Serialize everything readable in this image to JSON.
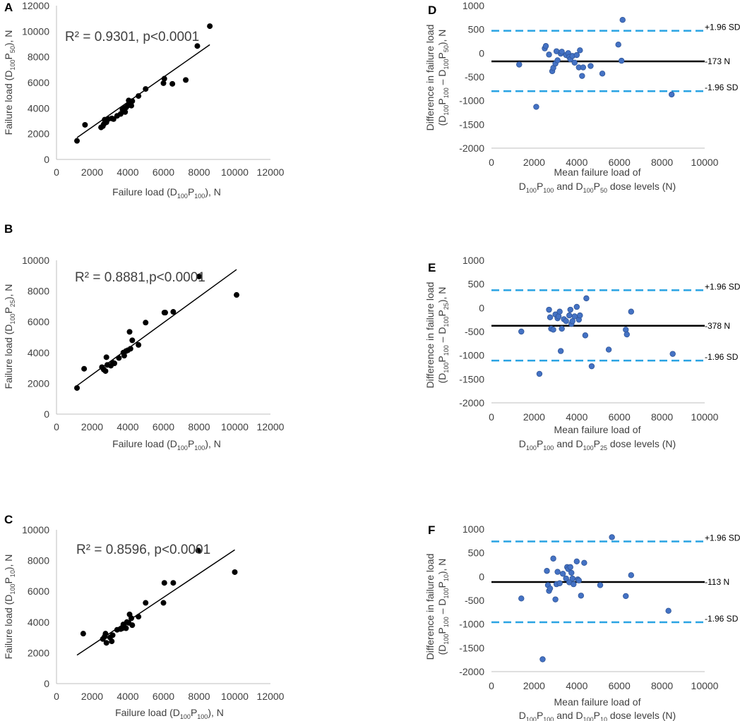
{
  "colors": {
    "scatter_point": "#000000",
    "ba_point": "#4472c4",
    "ba_point_edge": "#2f5597",
    "mean_line": "#000000",
    "limit_line": "#29a3e3",
    "axis": "#bfbfbf",
    "text": "#404040"
  },
  "chart_data": [
    {
      "panel": "A",
      "type": "scatter",
      "title": "",
      "xlabel": {
        "pre": "Failure load (D",
        "s1": "100",
        "mid": "P",
        "s2": "100",
        "post": "), N"
      },
      "ylabel": {
        "pre": "Failure load (D",
        "s1": "100",
        "mid": "P",
        "s2": "50",
        "post": "), N"
      },
      "xlim": [
        0,
        12000
      ],
      "ylim": [
        0,
        12000
      ],
      "xticks": [
        "0",
        "2000",
        "4000",
        "6000",
        "8000",
        "10000",
        "12000"
      ],
      "yticks": [
        "0",
        "2000",
        "4000",
        "6000",
        "8000",
        "10000",
        "12000"
      ],
      "annotation": "R² = 0.9301, p<0.0001",
      "trendline": [
        [
          1150,
          1700
        ],
        [
          8600,
          8950
        ]
      ],
      "points": [
        [
          1150,
          1450
        ],
        [
          1600,
          2700
        ],
        [
          2500,
          2500
        ],
        [
          2600,
          2600
        ],
        [
          2650,
          2750
        ],
        [
          2700,
          3100
        ],
        [
          2800,
          2900
        ],
        [
          2900,
          3150
        ],
        [
          3100,
          3200
        ],
        [
          3200,
          3150
        ],
        [
          3400,
          3400
        ],
        [
          3600,
          3550
        ],
        [
          3700,
          3900
        ],
        [
          3800,
          4000
        ],
        [
          3850,
          3700
        ],
        [
          3900,
          4050
        ],
        [
          4000,
          4200
        ],
        [
          4050,
          4600
        ],
        [
          4100,
          4500
        ],
        [
          4200,
          4200
        ],
        [
          4250,
          4550
        ],
        [
          4600,
          4950
        ],
        [
          5000,
          5500
        ],
        [
          6000,
          5950
        ],
        [
          6050,
          6300
        ],
        [
          6500,
          5900
        ],
        [
          7250,
          6200
        ],
        [
          7900,
          8850
        ],
        [
          8600,
          10400
        ]
      ]
    },
    {
      "panel": "B",
      "type": "scatter",
      "title": "",
      "xlabel": {
        "pre": "Failure load (D",
        "s1": "100",
        "mid": "P",
        "s2": "100",
        "post": "), N"
      },
      "ylabel": {
        "pre": "Failure load (D",
        "s1": "100",
        "mid": "P",
        "s2": "25",
        "post": "), N"
      },
      "xlim": [
        0,
        12000
      ],
      "ylim": [
        0,
        10000
      ],
      "xticks": [
        "0",
        "2000",
        "4000",
        "6000",
        "8000",
        "10000",
        "12000"
      ],
      "yticks": [
        "0",
        "2000",
        "4000",
        "6000",
        "8000",
        "10000"
      ],
      "annotation": "R² = 0.8881,p<0.0001",
      "trendline": [
        [
          1150,
          1850
        ],
        [
          10100,
          9400
        ]
      ],
      "points": [
        [
          1150,
          1700
        ],
        [
          1550,
          2950
        ],
        [
          2550,
          3050
        ],
        [
          2650,
          2900
        ],
        [
          2750,
          2800
        ],
        [
          2800,
          3700
        ],
        [
          2850,
          3200
        ],
        [
          3050,
          3150
        ],
        [
          3150,
          3350
        ],
        [
          3250,
          3300
        ],
        [
          3500,
          3650
        ],
        [
          3750,
          4000
        ],
        [
          3800,
          3800
        ],
        [
          3900,
          4100
        ],
        [
          4000,
          4150
        ],
        [
          4100,
          5350
        ],
        [
          4150,
          4250
        ],
        [
          4250,
          4800
        ],
        [
          4600,
          4500
        ],
        [
          5000,
          5950
        ],
        [
          6050,
          6600
        ],
        [
          6100,
          6600
        ],
        [
          6550,
          6650
        ],
        [
          8000,
          8950
        ],
        [
          10100,
          7750
        ]
      ]
    },
    {
      "panel": "C",
      "type": "scatter",
      "title": "",
      "xlabel": {
        "pre": "Failure load (D",
        "s1": "100",
        "mid": "P",
        "s2": "100",
        "post": "), N"
      },
      "ylabel": {
        "pre": "Failure load (D",
        "s1": "100",
        "mid": "P",
        "s2": "10",
        "post": "), N"
      },
      "xlim": [
        0,
        12000
      ],
      "ylim": [
        0,
        10000
      ],
      "xticks": [
        "0",
        "2000",
        "4000",
        "6000",
        "8000",
        "10000",
        "12000"
      ],
      "yticks": [
        "0",
        "2000",
        "4000",
        "6000",
        "8000",
        "10000"
      ],
      "annotation": "R² = 0.8596, p<0.0001",
      "trendline": [
        [
          1150,
          1850
        ],
        [
          10000,
          8700
        ]
      ],
      "points": [
        [
          1500,
          3250
        ],
        [
          2600,
          2900
        ],
        [
          2700,
          3050
        ],
        [
          2750,
          3250
        ],
        [
          2800,
          2650
        ],
        [
          3000,
          3000
        ],
        [
          3100,
          2750
        ],
        [
          3150,
          3150
        ],
        [
          3400,
          3500
        ],
        [
          3600,
          3550
        ],
        [
          3700,
          3600
        ],
        [
          3750,
          3850
        ],
        [
          3800,
          3700
        ],
        [
          3900,
          3600
        ],
        [
          3950,
          4000
        ],
        [
          4050,
          3950
        ],
        [
          4100,
          4500
        ],
        [
          4200,
          4250
        ],
        [
          4250,
          3800
        ],
        [
          4600,
          4350
        ],
        [
          5000,
          5250
        ],
        [
          6000,
          5250
        ],
        [
          6050,
          6550
        ],
        [
          6550,
          6550
        ],
        [
          7950,
          8650
        ],
        [
          10000,
          7250
        ]
      ]
    },
    {
      "panel": "D",
      "type": "scatter",
      "subtype": "bland-altman",
      "title": "",
      "xlabel": {
        "line1": "Mean failure load of",
        "a_pre": "D",
        "a_s1": "100",
        "a_mid": "P",
        "a_s2": "100",
        "join": " and D",
        "b_s1": "100",
        "b_mid": "P",
        "b_s2": "50",
        "post": " dose levels (N)"
      },
      "ylabel": {
        "line1": "Difference in failure load",
        "pre": "(D",
        "s1": "100",
        "mid": "P",
        "s2": "100",
        "dash": " – D",
        "s3": "100",
        "mid2": "P",
        "s4": "50",
        "post": "), N"
      },
      "xlim": [
        0,
        10000
      ],
      "ylim": [
        -2000,
        1000
      ],
      "xticks": [
        "0",
        "2000",
        "4000",
        "6000",
        "8000",
        "10000"
      ],
      "yticks": [
        "1000",
        "500",
        "0",
        "-500",
        "-1000",
        "-1500",
        "-2000"
      ],
      "mean": -173,
      "upper": 470,
      "lower": -800,
      "mean_label": "-173 N",
      "upper_label": "+1.96 SD",
      "lower_label": "-1.96 SD",
      "points": [
        [
          1300,
          -240
        ],
        [
          2100,
          -1130
        ],
        [
          2500,
          100
        ],
        [
          2550,
          150
        ],
        [
          2700,
          -30
        ],
        [
          2850,
          -380
        ],
        [
          2900,
          -310
        ],
        [
          3000,
          -220
        ],
        [
          3050,
          40
        ],
        [
          3100,
          -150
        ],
        [
          3250,
          -10
        ],
        [
          3300,
          30
        ],
        [
          3500,
          -40
        ],
        [
          3600,
          0
        ],
        [
          3650,
          -80
        ],
        [
          3700,
          -130
        ],
        [
          3800,
          -60
        ],
        [
          3900,
          -200
        ],
        [
          4000,
          -40
        ],
        [
          4100,
          -300
        ],
        [
          4150,
          60
        ],
        [
          4250,
          -480
        ],
        [
          4300,
          -300
        ],
        [
          4650,
          -270
        ],
        [
          5200,
          -430
        ],
        [
          5950,
          180
        ],
        [
          6100,
          -160
        ],
        [
          6150,
          700
        ],
        [
          8450,
          -870
        ]
      ]
    },
    {
      "panel": "E",
      "type": "scatter",
      "subtype": "bland-altman",
      "title": "",
      "xlabel": {
        "line1": "Mean failure load of",
        "a_pre": "D",
        "a_s1": "100",
        "a_mid": "P",
        "a_s2": "100",
        "join": " and D",
        "b_s1": "100",
        "b_mid": "P",
        "b_s2": "25",
        "post": " dose levels (N)"
      },
      "ylabel": {
        "line1": "Difference in failure load",
        "pre": "(D",
        "s1": "100",
        "mid": "P",
        "s2": "100",
        "dash": " – D",
        "s3": "100",
        "mid2": "P",
        "s4": "25",
        "post": "), N"
      },
      "xlim": [
        0,
        10000
      ],
      "ylim": [
        -2000,
        1000
      ],
      "xticks": [
        "0",
        "2000",
        "4000",
        "6000",
        "8000",
        "10000"
      ],
      "yticks": [
        "1000",
        "500",
        "0",
        "-500",
        "-1000",
        "-1500",
        "-2000"
      ],
      "mean": -378,
      "upper": 370,
      "lower": -1110,
      "mean_label": "-378 N",
      "upper_label": "+1.96 SD",
      "lower_label": "-1.96 SD",
      "points": [
        [
          1400,
          -500
        ],
        [
          2250,
          -1390
        ],
        [
          2700,
          -40
        ],
        [
          2750,
          -200
        ],
        [
          2800,
          -440
        ],
        [
          2900,
          -460
        ],
        [
          3000,
          -140
        ],
        [
          3100,
          -220
        ],
        [
          3150,
          -180
        ],
        [
          3200,
          -80
        ],
        [
          3250,
          -910
        ],
        [
          3300,
          -440
        ],
        [
          3400,
          -240
        ],
        [
          3500,
          -280
        ],
        [
          3650,
          -160
        ],
        [
          3700,
          -40
        ],
        [
          3750,
          -340
        ],
        [
          3800,
          -280
        ],
        [
          3900,
          -180
        ],
        [
          4000,
          20
        ],
        [
          4100,
          -250
        ],
        [
          4150,
          -160
        ],
        [
          4400,
          -580
        ],
        [
          4450,
          200
        ],
        [
          4700,
          -1230
        ],
        [
          5500,
          -880
        ],
        [
          6300,
          -460
        ],
        [
          6350,
          -560
        ],
        [
          6550,
          -80
        ],
        [
          8500,
          -970
        ]
      ]
    },
    {
      "panel": "F",
      "type": "scatter",
      "subtype": "bland-altman",
      "title": "",
      "xlabel": {
        "line1": "Mean failure load of",
        "a_pre": "D",
        "a_s1": "100",
        "a_mid": "P",
        "a_s2": "100",
        "join": " and D",
        "b_s1": "100",
        "b_mid": "P",
        "b_s2": "10",
        "post": " dose levels (N)"
      },
      "ylabel": {
        "line1": "Difference in failure load",
        "pre": "(D",
        "s1": "100",
        "mid": "P",
        "s2": "100",
        "dash": " – D",
        "s3": "100",
        "mid2": "P",
        "s4": "10",
        "post": "), N"
      },
      "xlim": [
        0,
        10000
      ],
      "ylim": [
        -2000,
        1000
      ],
      "xticks": [
        "0",
        "2000",
        "4000",
        "6000",
        "8000",
        "10000"
      ],
      "yticks": [
        "1000",
        "500",
        "0",
        "-500",
        "-1000",
        "-1500",
        "-2000"
      ],
      "mean": -113,
      "upper": 740,
      "lower": -960,
      "mean_label": "-113 N",
      "upper_label": "+1.96 SD",
      "lower_label": "-1.96 SD",
      "points": [
        [
          1400,
          -460
        ],
        [
          2400,
          -1740
        ],
        [
          2600,
          120
        ],
        [
          2650,
          -180
        ],
        [
          2700,
          -300
        ],
        [
          2750,
          -250
        ],
        [
          2900,
          380
        ],
        [
          3000,
          -480
        ],
        [
          3050,
          -160
        ],
        [
          3100,
          100
        ],
        [
          3200,
          -140
        ],
        [
          3350,
          60
        ],
        [
          3500,
          -40
        ],
        [
          3550,
          200
        ],
        [
          3600,
          160
        ],
        [
          3650,
          -120
        ],
        [
          3700,
          200
        ],
        [
          3750,
          80
        ],
        [
          3800,
          -40
        ],
        [
          3850,
          -160
        ],
        [
          4000,
          320
        ],
        [
          4050,
          -60
        ],
        [
          4100,
          -80
        ],
        [
          4200,
          -400
        ],
        [
          4350,
          290
        ],
        [
          5100,
          -180
        ],
        [
          5650,
          830
        ],
        [
          6300,
          -410
        ],
        [
          6550,
          30
        ],
        [
          8300,
          -720
        ]
      ]
    }
  ]
}
